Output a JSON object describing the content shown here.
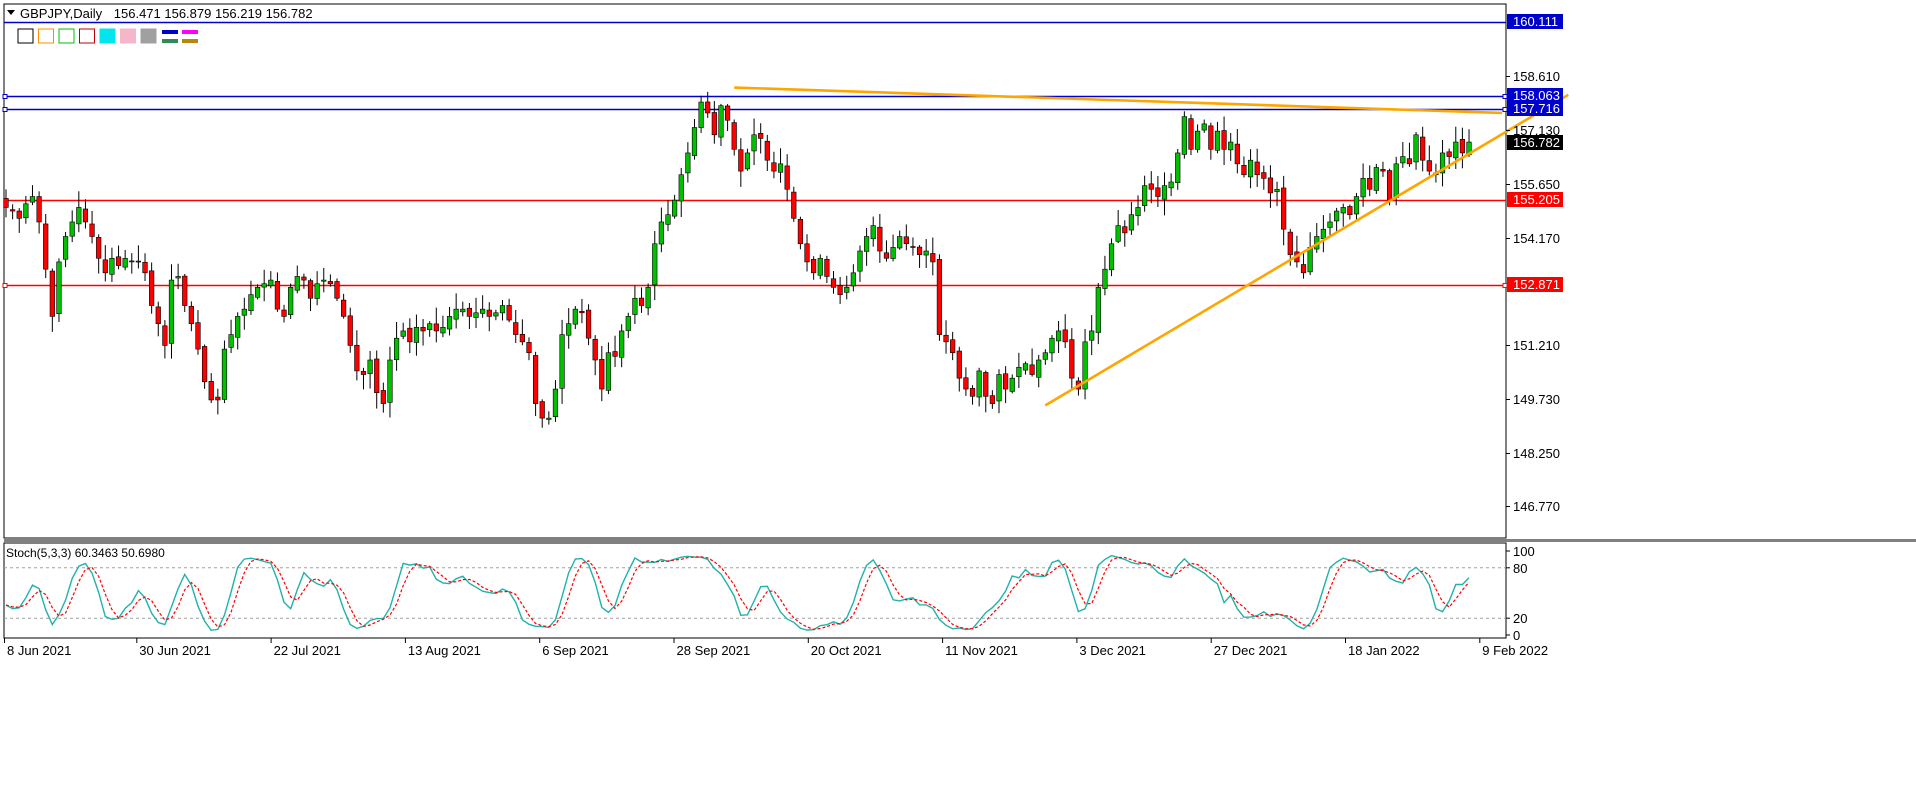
{
  "chart_data": {
    "type": "candlestick",
    "symbol": "GBPJPY,Daily",
    "ohlc_text": "156.471 156.879 156.219 156.782",
    "last_price": 156.782,
    "y_ticks": [
      160.111,
      158.61,
      158.063,
      157.716,
      157.13,
      156.782,
      155.65,
      155.205,
      154.17,
      152.871,
      151.21,
      149.73,
      148.25,
      146.77
    ],
    "x_ticks": [
      "8 Jun 2021",
      "30 Jun 2021",
      "22 Jul 2021",
      "13 Aug 2021",
      "6 Sep 2021",
      "28 Sep 2021",
      "20 Oct 2021",
      "11 Nov 2021",
      "3 Dec 2021",
      "27 Dec 2021",
      "18 Jan 2022",
      "9 Feb 2022"
    ],
    "ylim": [
      145.9,
      160.6
    ],
    "horizontal_levels": [
      {
        "value": 160.111,
        "label": "160.111",
        "color": "#0000cd"
      },
      {
        "value": 158.063,
        "label": "158.063",
        "color": "#0000cd"
      },
      {
        "value": 157.716,
        "label": "157.716",
        "color": "#0000cd"
      },
      {
        "value": 155.205,
        "label": "155.205",
        "color": "#ff0000"
      },
      {
        "value": 152.871,
        "label": "152.871",
        "color": "#ff0000"
      }
    ],
    "trendlines": [
      {
        "from_index": 157,
        "from_price": 149.55,
        "to_index": 236,
        "to_price": 158.1,
        "color": "#ffa500"
      },
      {
        "from_index": 110,
        "from_price": 158.3,
        "to_index": 226,
        "to_price": 157.6,
        "color": "#ffa500"
      }
    ],
    "up_color": "#00c000",
    "down_color": "#ff0000",
    "closes": [
      155.0,
      154.9,
      154.7,
      155.1,
      155.3,
      154.6,
      153.3,
      152.0,
      153.5,
      154.2,
      154.6,
      155.0,
      154.6,
      154.2,
      153.6,
      153.2,
      153.6,
      153.4,
      153.6,
      153.5,
      153.5,
      153.2,
      152.3,
      151.8,
      151.2,
      153.0,
      153.1,
      152.3,
      151.8,
      151.1,
      150.2,
      149.7,
      149.7,
      151.1,
      151.5,
      152.0,
      152.2,
      152.6,
      152.8,
      152.9,
      153.0,
      152.2,
      152.0,
      152.8,
      153.1,
      153.0,
      152.5,
      152.9,
      153.0,
      152.9,
      152.5,
      152.0,
      151.2,
      150.5,
      150.4,
      150.8,
      149.9,
      149.6,
      150.8,
      151.4,
      151.6,
      151.3,
      151.7,
      151.6,
      151.8,
      151.6,
      151.7,
      152.0,
      152.2,
      152.2,
      152.0,
      152.1,
      152.2,
      152.0,
      152.1,
      152.3,
      151.9,
      151.5,
      151.3,
      151.0,
      149.6,
      149.2,
      149.2,
      150.0,
      151.5,
      151.8,
      152.2,
      152.1,
      151.4,
      150.8,
      150.0,
      151.0,
      150.9,
      151.6,
      152.0,
      152.5,
      152.3,
      152.8,
      154.0,
      154.6,
      154.8,
      155.2,
      155.9,
      156.5,
      157.2,
      157.9,
      157.6,
      157.0,
      157.8,
      157.4,
      156.6,
      156.0,
      156.5,
      157.0,
      156.9,
      156.3,
      156.0,
      156.2,
      155.5,
      154.7,
      154.0,
      153.5,
      153.2,
      153.6,
      153.1,
      152.8,
      152.6,
      152.8,
      153.2,
      153.8,
      154.2,
      154.5,
      153.8,
      153.6,
      153.9,
      154.2,
      154.0,
      153.9,
      153.7,
      153.8,
      153.5,
      151.5,
      151.3,
      151.0,
      150.3,
      150.0,
      149.8,
      150.5,
      149.8,
      149.6,
      150.4,
      150.0,
      150.3,
      150.6,
      150.7,
      150.4,
      150.8,
      151.0,
      151.4,
      151.6,
      151.3,
      150.3,
      150.0,
      151.3,
      151.6,
      152.8,
      153.3,
      154.0,
      154.5,
      154.3,
      154.8,
      155.0,
      155.6,
      155.5,
      155.3,
      155.6,
      155.7,
      156.5,
      157.5,
      156.6,
      157.1,
      157.3,
      156.6,
      157.1,
      156.6,
      156.8,
      156.2,
      155.9,
      156.3,
      155.9,
      155.8,
      155.4,
      155.5,
      154.4,
      153.7,
      153.5,
      153.2,
      153.9,
      154.2,
      154.4,
      154.6,
      154.9,
      155.0,
      154.8,
      155.3,
      155.8,
      155.5,
      156.1,
      156.0,
      155.2,
      156.2,
      156.4,
      156.2,
      157.0,
      156.3,
      156.0,
      155.9,
      156.5,
      156.4,
      156.8,
      156.5,
      156.8
    ],
    "stoch_label": "Stoch(5,3,3) 60.3463 50.6980",
    "stoch_params": [
      5,
      3,
      3
    ],
    "stoch_main_color": "#20b2aa",
    "stoch_signal_color": "#ff0000",
    "stoch_ticks": [
      100,
      80,
      20,
      0
    ],
    "stoch_levels": [
      80,
      20
    ]
  },
  "toolbar": {
    "swatches": [
      {
        "color": "#ffffff",
        "border": "#000000"
      },
      {
        "color": "#ffffff",
        "border": "#ff8c00"
      },
      {
        "color": "#ffffff",
        "border": "#00c000"
      },
      {
        "color": "#ffffff",
        "border": "#c00000"
      },
      {
        "color": "#00e5ee",
        "border": "#00e5ee"
      },
      {
        "color": "#f4b6c8",
        "border": "#f4b6c8"
      },
      {
        "color": "#a0a0a0",
        "border": "#a0a0a0"
      }
    ],
    "mini_bars": [
      {
        "color": "#0000cd",
        "row": 0,
        "col": 0
      },
      {
        "color": "#ff00ff",
        "row": 0,
        "col": 1
      },
      {
        "color": "#2e8b57",
        "row": 1,
        "col": 0
      },
      {
        "color": "#b8860b",
        "row": 1,
        "col": 1
      }
    ]
  }
}
